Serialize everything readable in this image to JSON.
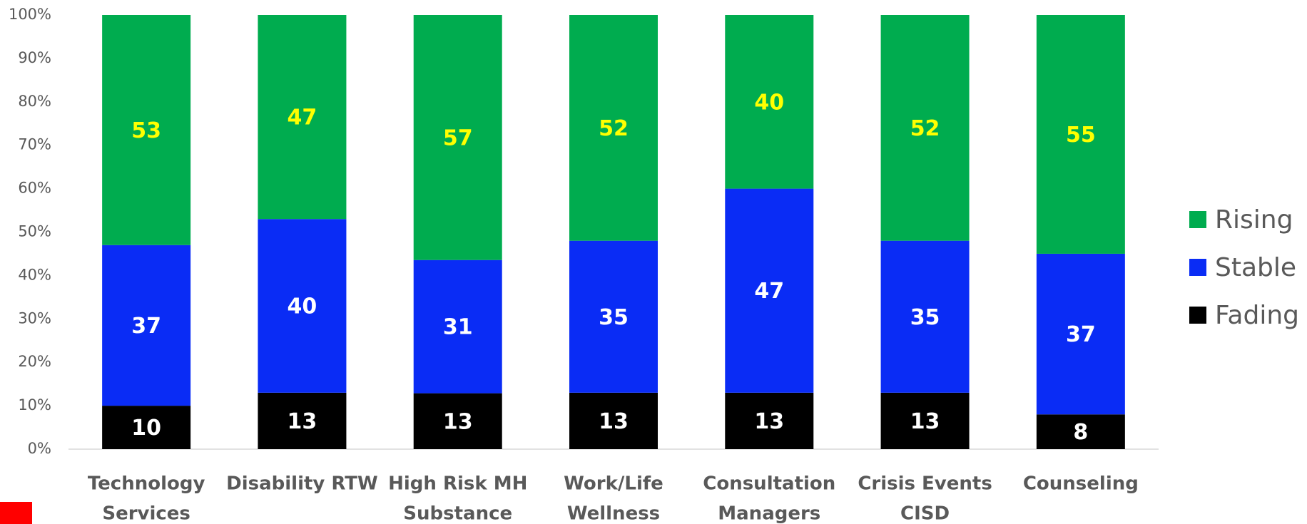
{
  "chart_data": {
    "type": "bar",
    "stacked": "percent",
    "categories": [
      [
        "Technology",
        "Services"
      ],
      [
        "Disability RTW"
      ],
      [
        "High Risk MH",
        "Substance"
      ],
      [
        "Work/Life",
        "Wellness"
      ],
      [
        "Consultation",
        "Managers"
      ],
      [
        "Crisis Events",
        "CISD"
      ],
      [
        "Counseling"
      ]
    ],
    "series": [
      {
        "name": "Fading",
        "color": "#000000",
        "label_color": "#ffffff",
        "values": [
          10,
          13,
          13,
          13,
          13,
          13,
          8
        ]
      },
      {
        "name": "Stable",
        "color": "#0a2cf5",
        "label_color": "#ffffff",
        "values": [
          37,
          40,
          31,
          35,
          47,
          35,
          37
        ]
      },
      {
        "name": "Rising",
        "color": "#00ac4f",
        "label_color": "#ffff00",
        "values": [
          53,
          47,
          57,
          52,
          40,
          52,
          55
        ]
      }
    ],
    "ylim": [
      0,
      100
    ],
    "yticks": [
      {
        "value": 0,
        "label": "0%"
      },
      {
        "value": 10,
        "label": "10%"
      },
      {
        "value": 20,
        "label": "20%"
      },
      {
        "value": 30,
        "label": "30%"
      },
      {
        "value": 40,
        "label": "40%"
      },
      {
        "value": 50,
        "label": "50%"
      },
      {
        "value": 60,
        "label": "60%"
      },
      {
        "value": 70,
        "label": "70%"
      },
      {
        "value": 80,
        "label": "80%"
      },
      {
        "value": 90,
        "label": "90%"
      },
      {
        "value": 100,
        "label": "100%"
      }
    ],
    "grid": false,
    "legend": "right"
  }
}
